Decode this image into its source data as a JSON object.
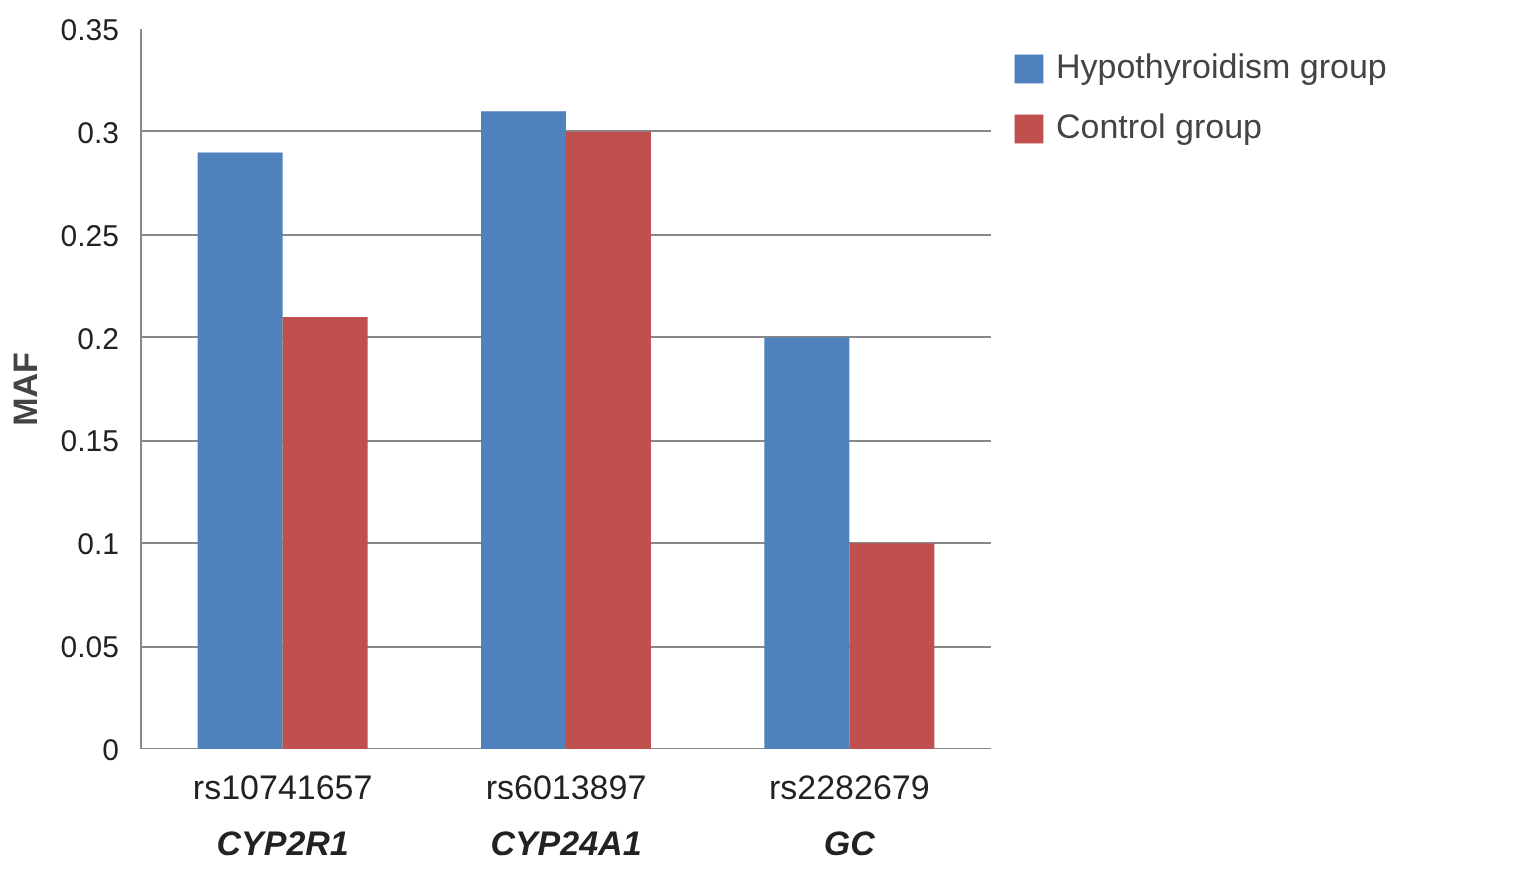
{
  "chart_data": {
    "type": "bar",
    "ylabel": "MAF",
    "categories": [
      "rs10741657\nCYP2R1",
      "rs6013897\nCYP24A1",
      "rs2282679\nGC"
    ],
    "series": [
      {
        "name": "Hypothyroidism group",
        "color": "#4f81bd",
        "values": [
          0.29,
          0.31,
          0.2
        ]
      },
      {
        "name": "Control group",
        "color": "#c0504d",
        "values": [
          0.21,
          0.3,
          0.1
        ]
      }
    ],
    "ylim": [
      0,
      0.35
    ],
    "yticks": [
      0,
      0.05,
      0.1,
      0.15,
      0.2,
      0.25,
      0.3,
      0.35
    ],
    "grid": "y",
    "legend": "top right"
  }
}
